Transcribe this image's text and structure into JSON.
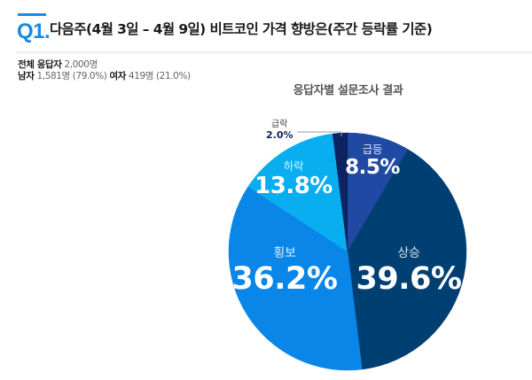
{
  "question": {
    "number": "Q1.",
    "title": "다음주(4월 3일 – 4월 9일)  비트코인 가격 향방은(주간 등락률 기준)"
  },
  "respondents": {
    "total_label": "전체 응답자",
    "total_value": "2,000명",
    "male_label": "남자",
    "male_value": "1,581명 (79.0%)",
    "female_label": "여자",
    "female_value": "419명 (21.0%)"
  },
  "colors": {
    "accent": "#1a8ae0",
    "slice_up_sharp": "#2049a3",
    "slice_up": "#003f72",
    "slice_flat": "#0a86e8",
    "slice_down": "#08aef0",
    "slice_down_sharp": "#0b2460"
  },
  "chart_data": {
    "type": "pie",
    "title": "응답자별 설문조사 결과",
    "start_angle_deg": 0,
    "direction": "clockwise",
    "categories": [
      "급등",
      "상승",
      "횡보",
      "하락",
      "급락"
    ],
    "values": [
      8.5,
      39.6,
      36.2,
      13.8,
      2.0
    ],
    "labels": [
      "8.5%",
      "39.6%",
      "36.2%",
      "13.8%",
      "2.0%"
    ],
    "label_positions": [
      "inside",
      "inside",
      "inside",
      "inside",
      "outside-leader"
    ],
    "legend": "none"
  }
}
